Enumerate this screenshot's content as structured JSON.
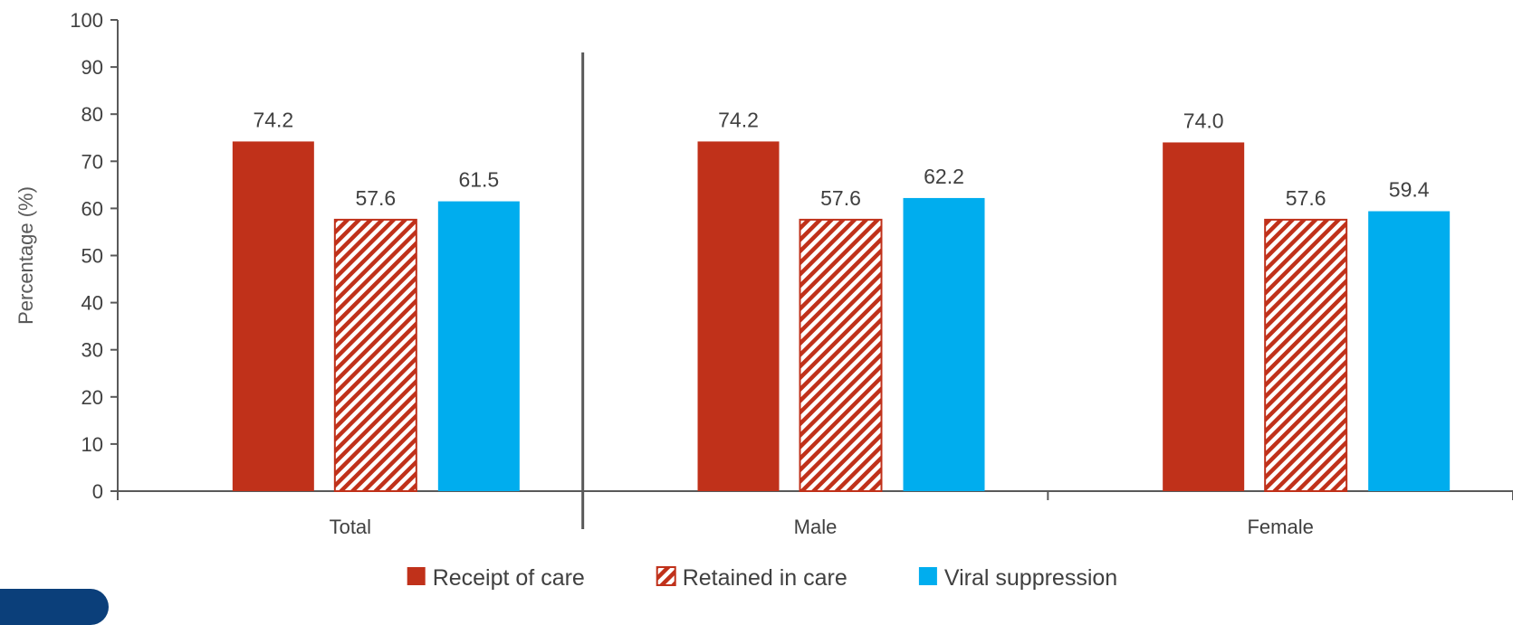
{
  "chart_data": {
    "type": "bar",
    "title": "",
    "xlabel": "",
    "ylabel": "Percentage (%)",
    "ylim": [
      0,
      100
    ],
    "yticks": [
      0,
      10,
      20,
      30,
      40,
      50,
      60,
      70,
      80,
      90,
      100
    ],
    "categories": [
      "Total",
      "Male",
      "Female"
    ],
    "series": [
      {
        "name": "Receipt of care",
        "values": [
          74.2,
          74.2,
          74.0
        ],
        "labels": [
          "74.2",
          "74.2",
          "74.0"
        ],
        "color": "#c0311a",
        "pattern": "solid"
      },
      {
        "name": "Retained in care",
        "values": [
          57.6,
          57.6,
          57.6
        ],
        "labels": [
          "57.6",
          "57.6",
          "57.6"
        ],
        "color": "#c0311a",
        "pattern": "diagonal-hatch"
      },
      {
        "name": "Viral suppression",
        "values": [
          61.5,
          62.2,
          59.4
        ],
        "labels": [
          "61.5",
          "62.2",
          "59.4"
        ],
        "color": "#00adee",
        "pattern": "solid"
      }
    ],
    "grid": false,
    "legend": "bottom-center",
    "separator_after_category": "Total"
  }
}
